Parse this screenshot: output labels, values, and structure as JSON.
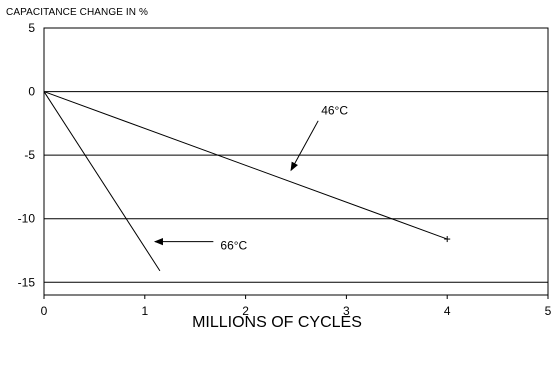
{
  "chart_data": {
    "type": "line",
    "title": "",
    "ylabel": "CAPACITANCE CHANGE IN %",
    "xlabel": "MILLIONS OF CYCLES",
    "xlim": [
      0,
      5
    ],
    "ylim": [
      -16,
      5
    ],
    "x_ticks": [
      "0",
      "1",
      "2",
      "3",
      "4",
      "5"
    ],
    "y_ticks": [
      "5",
      "0",
      "-5",
      "-10",
      "-15"
    ],
    "grid": "horizontal",
    "series": [
      {
        "name": "46°C",
        "x": [
          0,
          4.0
        ],
        "y": [
          0,
          -11.6
        ],
        "end_marker": "+"
      },
      {
        "name": "66°C",
        "x": [
          0,
          1.15
        ],
        "y": [
          0,
          -14.1
        ]
      }
    ],
    "annotations": [
      {
        "text": "46°C",
        "label_at": [
          2.75,
          -1.5
        ],
        "arrow_from": [
          2.72,
          -2.3
        ],
        "arrow_to": [
          2.45,
          -6.2
        ]
      },
      {
        "text": "66°C",
        "label_at": [
          1.75,
          -12.1
        ],
        "arrow_from": [
          1.68,
          -11.8
        ],
        "arrow_to": [
          1.1,
          -11.8
        ]
      }
    ]
  }
}
